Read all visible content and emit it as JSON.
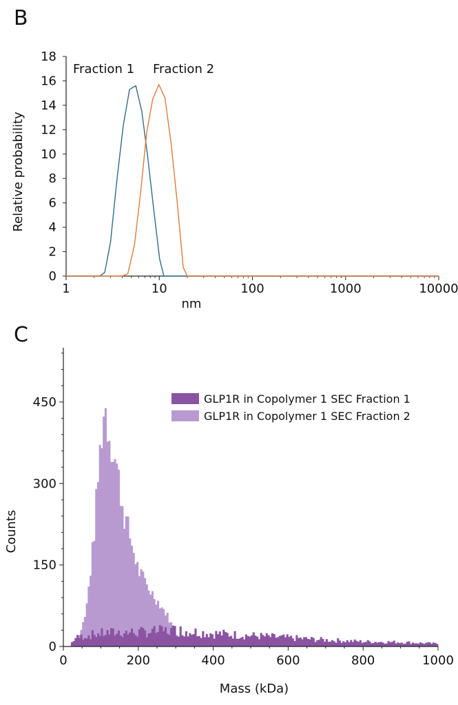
{
  "panel_b_letter": "B",
  "panel_c_letter": "C",
  "chart_data": [
    {
      "type": "line",
      "panel": "B",
      "xscale": "log",
      "xlabel": "nm",
      "ylabel": "Relative probability",
      "xlim": [
        1,
        10000
      ],
      "ylim": [
        0,
        18
      ],
      "xticks": [
        "1",
        "10",
        "100",
        "1000",
        "10000"
      ],
      "yticks": [
        "0",
        "2",
        "4",
        "6",
        "8",
        "10",
        "12",
        "14",
        "16",
        "18"
      ],
      "series": [
        {
          "name": "Fraction 1",
          "color": "#2f6b8c",
          "x": [
            1,
            2.3,
            2.6,
            3.0,
            3.5,
            4.1,
            4.8,
            5.6,
            6.5,
            7.5,
            8.7,
            10.1,
            11.2,
            20,
            10000
          ],
          "y": [
            0,
            0,
            0.3,
            2.8,
            7.8,
            12.3,
            15.3,
            15.6,
            13.5,
            9.8,
            5.5,
            1.4,
            0,
            0,
            0
          ]
        },
        {
          "name": "Fraction 2",
          "color": "#e07a3a",
          "x": [
            1,
            4.0,
            4.6,
            5.4,
            6.3,
            7.3,
            8.5,
            9.9,
            11.5,
            13.4,
            15.6,
            18.1,
            20.0,
            10000
          ],
          "y": [
            0,
            0,
            0.2,
            2.5,
            6.8,
            11.7,
            14.5,
            15.7,
            14.6,
            10.9,
            6.0,
            0.7,
            0,
            0
          ]
        }
      ]
    },
    {
      "type": "bar",
      "subtype": "histogram",
      "panel": "C",
      "xlabel": "Mass (kDa)",
      "ylabel": "Counts",
      "xlim": [
        0,
        1000
      ],
      "ylim": [
        0,
        550
      ],
      "xticks": [
        "0",
        "200",
        "400",
        "600",
        "800",
        "1000"
      ],
      "yticks": [
        "0",
        "150",
        "300",
        "450"
      ],
      "bin_width": 5,
      "series": [
        {
          "name": "GLP1R in Copolymer 1 SEC Fraction 1",
          "color": "#8a54a2",
          "anchors_x": [
            20,
            30,
            60,
            100,
            150,
            200,
            250,
            300,
            350,
            400,
            500,
            600,
            700,
            800,
            900,
            1000
          ],
          "anchors_y": [
            5,
            15,
            20,
            24,
            26,
            26,
            28,
            30,
            27,
            24,
            20,
            16,
            12,
            9,
            8,
            5
          ]
        },
        {
          "name": "GLP1R in Copolymer 1 SEC Fraction 2",
          "color": "#b99ad0",
          "anchors_x": [
            20,
            40,
            60,
            80,
            100,
            110,
            120,
            140,
            160,
            180,
            200,
            225,
            250,
            275,
            300,
            330
          ],
          "anchors_y": [
            0,
            15,
            60,
            190,
            380,
            445,
            400,
            340,
            250,
            195,
            140,
            110,
            85,
            60,
            25,
            0
          ]
        }
      ]
    }
  ]
}
